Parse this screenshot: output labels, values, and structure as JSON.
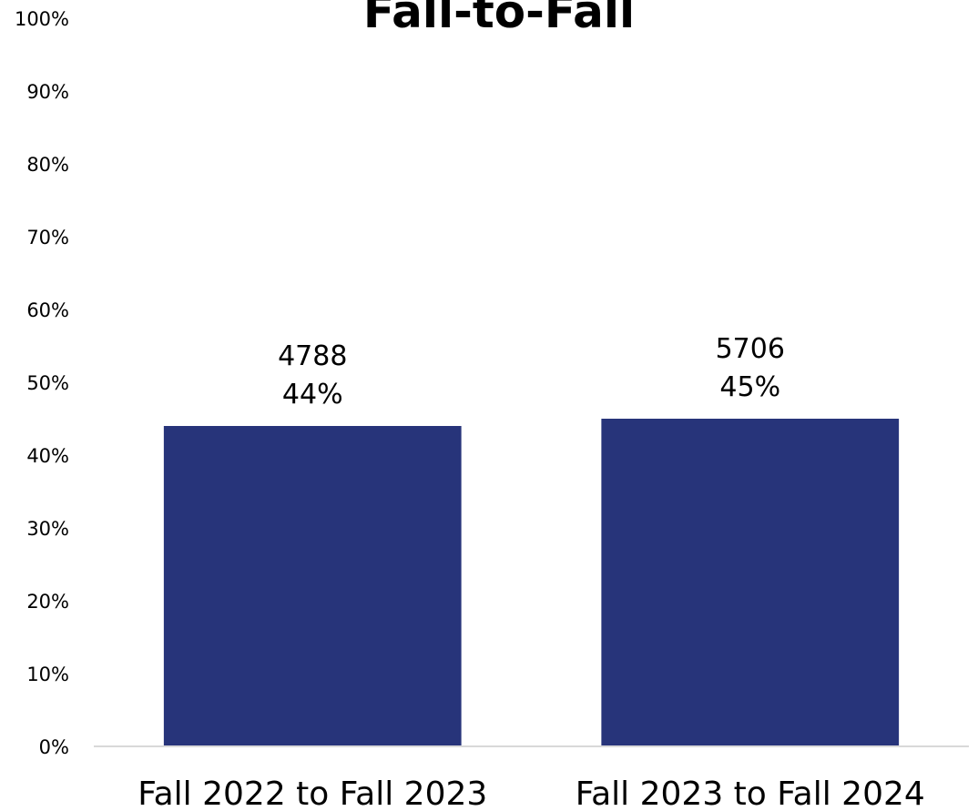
{
  "chart_data": {
    "type": "bar",
    "title": "Fall-to-Fall",
    "categories": [
      "Fall 2022 to Fall 2023",
      "Fall 2023 to Fall 2024"
    ],
    "values": [
      44,
      45
    ],
    "data_labels": [
      {
        "count": "4788",
        "percent": "44%"
      },
      {
        "count": "5706",
        "percent": "45%"
      }
    ],
    "y_ticks": [
      "0%",
      "10%",
      "20%",
      "30%",
      "40%",
      "50%",
      "60%",
      "70%",
      "80%",
      "90%",
      "100%"
    ],
    "ylim": [
      0,
      100
    ],
    "grid": false,
    "legend": "none",
    "bar_color": "#27347A",
    "axis_color": "#D9D9D9"
  }
}
